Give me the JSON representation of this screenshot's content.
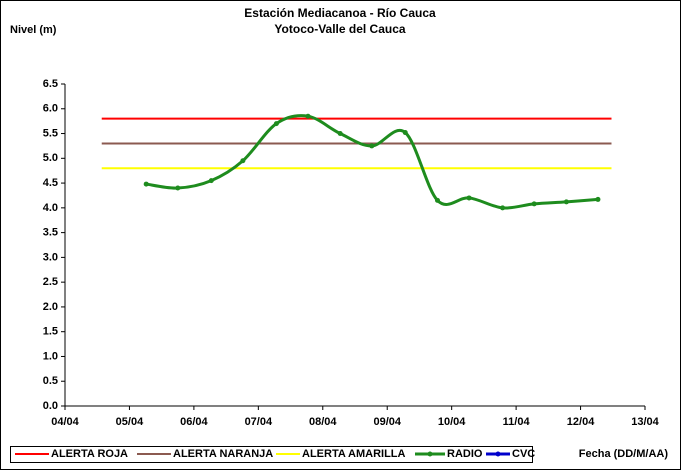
{
  "chart_data": {
    "type": "line",
    "title": "Estación Mediacanoa - Río Cauca",
    "subtitle": "Yotoco-Valle del Cauca",
    "y_label": "Nivel (m)",
    "x_label": "Fecha (DD/M/AA)",
    "xlim": [
      4,
      13
    ],
    "xticks": [
      {
        "value": 4,
        "label": "04/04"
      },
      {
        "value": 5,
        "label": "05/04"
      },
      {
        "value": 6,
        "label": "06/04"
      },
      {
        "value": 7,
        "label": "07/04"
      },
      {
        "value": 8,
        "label": "08/04"
      },
      {
        "value": 9,
        "label": "09/04"
      },
      {
        "value": 10,
        "label": "10/04"
      },
      {
        "value": 11,
        "label": "11/04"
      },
      {
        "value": 12,
        "label": "12/04"
      },
      {
        "value": 13,
        "label": "13/04"
      }
    ],
    "ylim": [
      0,
      6.5
    ],
    "yticks": [
      {
        "value": 0,
        "label": "0.0"
      },
      {
        "value": 0.5,
        "label": "0.5"
      },
      {
        "value": 1,
        "label": "1.0"
      },
      {
        "value": 1.5,
        "label": "1.5"
      },
      {
        "value": 2,
        "label": "2.0"
      },
      {
        "value": 2.5,
        "label": "2.5"
      },
      {
        "value": 3,
        "label": "3.0"
      },
      {
        "value": 3.5,
        "label": "3.5"
      },
      {
        "value": 4,
        "label": "4.0"
      },
      {
        "value": 4.5,
        "label": "4.5"
      },
      {
        "value": 5,
        "label": "5.0"
      },
      {
        "value": 5.5,
        "label": "5.5"
      },
      {
        "value": 6,
        "label": "6.0"
      },
      {
        "value": 6.5,
        "label": "6.5"
      }
    ],
    "legend": "bottom",
    "series": [
      {
        "name": "ALERTA ROJA",
        "color": "#ff0000",
        "x": [
          4.57,
          12.48
        ],
        "values": [
          5.8,
          5.8
        ]
      },
      {
        "name": "ALERTA NARANJA",
        "color": "#8b5a50",
        "x": [
          4.57,
          12.48
        ],
        "values": [
          5.3,
          5.3
        ]
      },
      {
        "name": "ALERTA AMARILLA",
        "color": "#ffff00",
        "x": [
          4.57,
          12.48
        ],
        "values": [
          4.8,
          4.8
        ]
      },
      {
        "name": "RADIO",
        "color": "#1e8c1e",
        "markers": true,
        "x": [
          5.26,
          5.75,
          6.27,
          6.76,
          7.28,
          7.77,
          8.27,
          8.76,
          9.28,
          9.78,
          10.27,
          10.79,
          11.28,
          11.78,
          12.27
        ],
        "values": [
          4.48,
          4.4,
          4.55,
          4.95,
          5.7,
          5.85,
          5.5,
          5.25,
          5.52,
          4.15,
          4.2,
          4.0,
          4.08,
          4.12,
          4.17
        ]
      },
      {
        "name": "CVC",
        "color": "#0000cc",
        "markers": true,
        "x": [],
        "values": []
      }
    ]
  }
}
